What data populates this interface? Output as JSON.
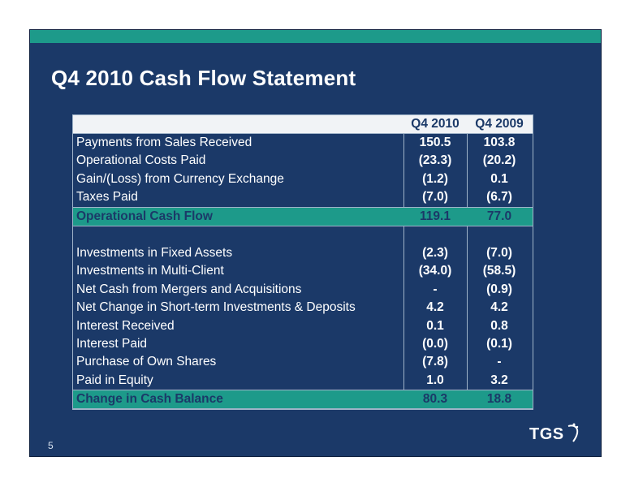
{
  "slide": {
    "title": "Q4 2010 Cash Flow Statement",
    "page_number": "5",
    "logo_text": "TGS",
    "colors": {
      "background": "#1b3968",
      "accent": "#1d9a8a",
      "header_bg": "#f1f3f6"
    }
  },
  "table": {
    "columns": [
      "Q4 2010",
      "Q4 2009"
    ],
    "rows_section1": [
      {
        "label": "Payments from Sales Received",
        "q4_2010": "150.5",
        "q4_2009": "103.8"
      },
      {
        "label": "Operational Costs Paid",
        "q4_2010": "(23.3)",
        "q4_2009": "(20.2)"
      },
      {
        "label": "Gain/(Loss) from Currency Exchange",
        "q4_2010": "(1.2)",
        "q4_2009": "0.1"
      },
      {
        "label": "Taxes Paid",
        "q4_2010": "(7.0)",
        "q4_2009": "(6.7)"
      }
    ],
    "subtotal1": {
      "label": "Operational Cash Flow",
      "q4_2010": "119.1",
      "q4_2009": "77.0"
    },
    "rows_section2": [
      {
        "label": "Investments in Fixed Assets",
        "q4_2010": "(2.3)",
        "q4_2009": "(7.0)"
      },
      {
        "label": "Investments in Multi-Client",
        "q4_2010": "(34.0)",
        "q4_2009": "(58.5)"
      },
      {
        "label": "Net Cash from Mergers and Acquisitions",
        "q4_2010": "-",
        "q4_2009": "(0.9)"
      },
      {
        "label": "Net Change in Short-term Investments & Deposits",
        "q4_2010": "4.2",
        "q4_2009": "4.2"
      },
      {
        "label": "Interest Received",
        "q4_2010": "0.1",
        "q4_2009": "0.8"
      },
      {
        "label": "Interest Paid",
        "q4_2010": "(0.0)",
        "q4_2009": "(0.1)"
      },
      {
        "label": "Purchase of Own Shares",
        "q4_2010": "(7.8)",
        "q4_2009": "-"
      },
      {
        "label": "Paid in Equity",
        "q4_2010": "1.0",
        "q4_2009": "3.2"
      }
    ],
    "subtotal2": {
      "label": "Change in Cash Balance",
      "q4_2010": "80.3",
      "q4_2009": "18.8"
    }
  }
}
